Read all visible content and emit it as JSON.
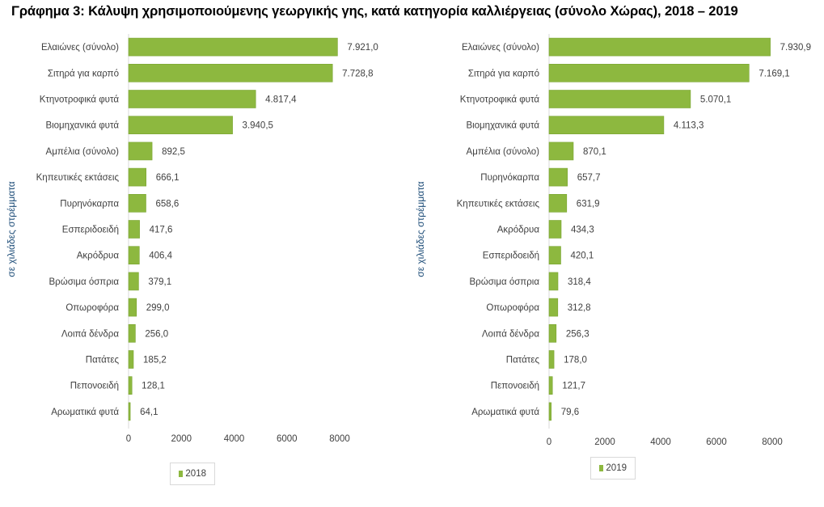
{
  "title": "Γράφημα 3: Κάλυψη χρησιμοποιούμενης γεωργικής γης, κατά κατηγορία καλλιέργειας (σύνολο Χώρας), 2018 – 2019",
  "colors": {
    "bar": "#8db83f",
    "bar_edge": "#7aa532",
    "axis": "#d9d9d9",
    "ylabel": "#1f4e79"
  },
  "chart_data": [
    {
      "type": "bar",
      "orientation": "horizontal",
      "ylabel": "σε χιλιάδες στρέμματα",
      "xlim": [
        0,
        8000
      ],
      "xticks": [
        "0",
        "2000",
        "4000",
        "6000",
        "8000"
      ],
      "grid": false,
      "legend_position": "bottom",
      "series": [
        {
          "name": "2018",
          "values": [
            7921.0,
            7728.8,
            4817.4,
            3940.5,
            892.5,
            666.1,
            658.6,
            417.6,
            406.4,
            379.1,
            299.0,
            256.0,
            185.2,
            128.1,
            64.1
          ]
        }
      ],
      "categories": [
        "Ελαιώνες (σύνολο)",
        "Σιτηρά για καρπό",
        "Κτηνοτροφικά φυτά",
        "Βιομηχανικά φυτά",
        "Αμπέλια  (σύνολο)",
        "Κηπευτικές εκτάσεις",
        "Πυρηνόκαρπα",
        "Εσπεριδοειδή",
        "Ακρόδρυα",
        "Βρώσιμα όσπρια",
        "Οπωροφόρα",
        "Λοιπά δένδρα",
        "Πατάτες",
        "Πεπονοειδή",
        "Αρωματικά φυτά"
      ],
      "labels": [
        "7.921,0",
        "7.728,8",
        "4.817,4",
        "3.940,5",
        "892,5",
        "666,1",
        "658,6",
        "417,6",
        "406,4",
        "379,1",
        "299,0",
        "256,0",
        "185,2",
        "128,1",
        "64,1"
      ]
    },
    {
      "type": "bar",
      "orientation": "horizontal",
      "ylabel": "σε χιλιάδες στρέμματα",
      "xlim": [
        0,
        8000
      ],
      "xticks": [
        "0",
        "2000",
        "4000",
        "6000",
        "8000"
      ],
      "grid": false,
      "legend_position": "bottom",
      "series": [
        {
          "name": "2019",
          "values": [
            7930.9,
            7169.1,
            5070.1,
            4113.3,
            870.1,
            657.7,
            631.9,
            434.3,
            420.1,
            318.4,
            312.8,
            256.3,
            178.0,
            121.7,
            79.6
          ]
        }
      ],
      "categories": [
        "Ελαιώνες (σύνολο)",
        "Σιτηρά για καρπό",
        "Κτηνοτροφικά φυτά",
        "Βιομηχανικά φυτά",
        "Αμπέλια (σύνολο)",
        "Πυρηνόκαρπα",
        "Κηπευτικές εκτάσεις",
        "Ακρόδρυα",
        "Εσπεριδοειδή",
        "Βρώσιμα όσπρια",
        "Οπωροφόρα",
        "Λοιπά δένδρα",
        "Πατάτες",
        "Πεπονοειδή",
        "Αρωματικά φυτά"
      ],
      "labels": [
        "7.930,9",
        "7.169,1",
        "5.070,1",
        "4.113,3",
        "870,1",
        "657,7",
        "631,9",
        "434,3",
        "420,1",
        "318,4",
        "312,8",
        "256,3",
        "178,0",
        "121,7",
        "79,6"
      ]
    }
  ]
}
